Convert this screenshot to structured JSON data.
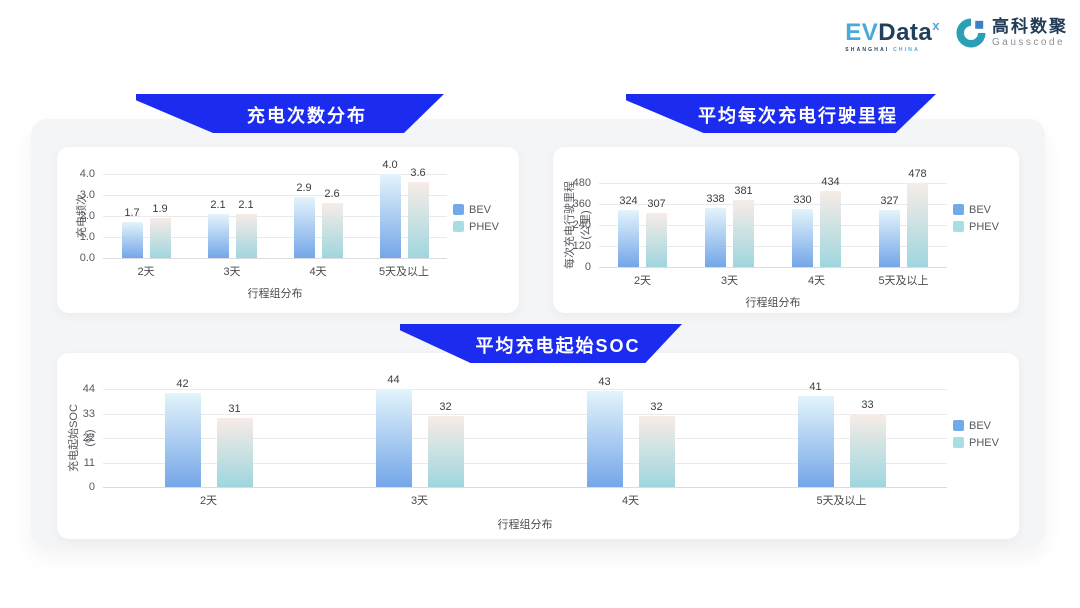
{
  "header": {
    "evdata": {
      "ev": "EV",
      "data": "Data",
      "sup": "x",
      "shanghai": "SHANGHAI",
      "china": "CHINA"
    },
    "gausscode": {
      "cn": "高科数聚",
      "en": "Gausscode"
    }
  },
  "colors": {
    "banner_blue": "#1c2bf0",
    "bev_top": "#e3f4fb",
    "bev_bottom": "#74a6e8",
    "phev_top": "#f7ece7",
    "phev_bottom": "#9fd6de",
    "legend_bev": "#72a9e9",
    "legend_phev": "#a9dde4",
    "evdata_blue": "#49a9da",
    "evdata_navy": "#23405a",
    "gausscode_teal": "#2aa0b5",
    "gausscode_blue": "#3c80c2"
  },
  "chart_data": [
    {
      "type": "bar",
      "title": "充电次数分布",
      "ylabel": "充电频次",
      "xlabel": "行程组分布",
      "categories": [
        "2天",
        "3天",
        "4天",
        "5天及以上"
      ],
      "ymax": 4.0,
      "ytick_labels": [
        "4.0",
        "3.0",
        "2.0",
        "1.0",
        "0.0"
      ],
      "grid": true,
      "legend_position": "right",
      "series": [
        {
          "name": "BEV",
          "values": [
            1.7,
            2.1,
            2.9,
            4.0
          ],
          "labels": [
            "1.7",
            "2.1",
            "2.9",
            "4.0"
          ]
        },
        {
          "name": "PHEV",
          "values": [
            1.9,
            2.1,
            2.6,
            3.6
          ],
          "labels": [
            "1.9",
            "2.1",
            "2.6",
            "3.6"
          ]
        }
      ]
    },
    {
      "type": "bar",
      "title": "平均每次充电行驶里程",
      "ylabel": "每次充电行驶里程\n(公里)",
      "xlabel": "行程组分布",
      "categories": [
        "2天",
        "3天",
        "4天",
        "5天及以上"
      ],
      "ymax": 480,
      "ytick_labels": [
        "480",
        "360",
        "240",
        "120",
        "0"
      ],
      "grid": true,
      "legend_position": "right",
      "series": [
        {
          "name": "BEV",
          "values": [
            324,
            338,
            330,
            327
          ],
          "labels": [
            "324",
            "338",
            "330",
            "327"
          ]
        },
        {
          "name": "PHEV",
          "values": [
            307,
            381,
            434,
            478
          ],
          "labels": [
            "307",
            "381",
            "434",
            "478"
          ]
        }
      ]
    },
    {
      "type": "bar",
      "title": "平均充电起始SOC",
      "ylabel": "充电起始SOC\n(%)",
      "xlabel": "行程组分布",
      "categories": [
        "2天",
        "3天",
        "4天",
        "5天及以上"
      ],
      "ymax": 44,
      "ytick_labels": [
        "44",
        "33",
        "22",
        "11",
        "0"
      ],
      "grid": true,
      "legend_position": "right",
      "series": [
        {
          "name": "BEV",
          "values": [
            42,
            44,
            43,
            41
          ],
          "labels": [
            "42",
            "44",
            "43",
            "41"
          ]
        },
        {
          "name": "PHEV",
          "values": [
            31,
            32,
            32,
            33
          ],
          "labels": [
            "31",
            "32",
            "32",
            "33"
          ]
        }
      ]
    }
  ]
}
